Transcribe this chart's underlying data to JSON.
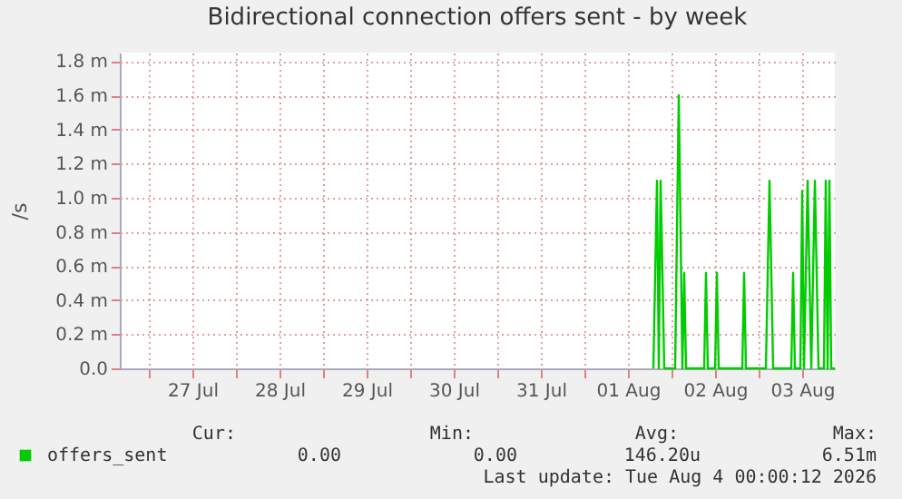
{
  "chart_data": {
    "type": "line",
    "title": "Bidirectional connection offers sent - by week",
    "ylabel": "/s",
    "x": [
      "2026-08-01T19:00",
      "2026-08-01T20:00",
      "2026-08-01T20:30",
      "2026-08-01T21:00",
      "2026-08-01T22:00",
      "2026-08-02T01:00",
      "2026-08-02T02:00",
      "2026-08-02T03:00",
      "2026-08-02T03:30",
      "2026-08-02T04:00",
      "2026-08-02T09:00",
      "2026-08-02T09:30",
      "2026-08-02T10:00",
      "2026-08-02T12:00",
      "2026-08-02T12:30",
      "2026-08-02T13:00",
      "2026-08-02T19:30",
      "2026-08-02T20:00",
      "2026-08-02T20:30",
      "2026-08-03T02:00",
      "2026-08-03T03:00",
      "2026-08-03T04:00",
      "2026-08-03T09:00",
      "2026-08-03T09:30",
      "2026-08-03T10:00",
      "2026-08-03T11:30",
      "2026-08-03T12:00",
      "2026-08-03T12:30",
      "2026-08-03T13:30",
      "2026-08-03T14:30",
      "2026-08-03T15:30",
      "2026-08-03T16:30",
      "2026-08-03T18:00",
      "2026-08-03T18:30",
      "2026-08-03T19:00",
      "2026-08-03T19:30",
      "2026-08-03T20:00",
      "2026-08-03T21:00"
    ],
    "series": [
      {
        "name": "offers_sent",
        "color": "#00cc00",
        "values": [
          0,
          1.1,
          0,
          1.1,
          0,
          0,
          1.6,
          0,
          0.56,
          0,
          0,
          0.56,
          0,
          0,
          0.56,
          0,
          0,
          0.56,
          0,
          0,
          1.1,
          0,
          0,
          0.56,
          0,
          0,
          1.04,
          0,
          1.1,
          0,
          1.1,
          0,
          0,
          1.1,
          0,
          1.1,
          0,
          0
        ]
      }
    ],
    "xlim": [
      "2026-07-26T16:00",
      "2026-08-03T21:00"
    ],
    "xticks": [
      {
        "value": "2026-07-27T00:00",
        "label": null
      },
      {
        "value": "2026-07-27T12:00",
        "label": "27 Jul"
      },
      {
        "value": "2026-07-28T00:00",
        "label": null
      },
      {
        "value": "2026-07-28T12:00",
        "label": "28 Jul"
      },
      {
        "value": "2026-07-29T00:00",
        "label": null
      },
      {
        "value": "2026-07-29T12:00",
        "label": "29 Jul"
      },
      {
        "value": "2026-07-30T00:00",
        "label": null
      },
      {
        "value": "2026-07-30T12:00",
        "label": "30 Jul"
      },
      {
        "value": "2026-07-31T00:00",
        "label": null
      },
      {
        "value": "2026-07-31T12:00",
        "label": "31 Jul"
      },
      {
        "value": "2026-08-01T00:00",
        "label": null
      },
      {
        "value": "2026-08-01T12:00",
        "label": "01 Aug"
      },
      {
        "value": "2026-08-02T00:00",
        "label": null
      },
      {
        "value": "2026-08-02T12:00",
        "label": "02 Aug"
      },
      {
        "value": "2026-08-03T00:00",
        "label": null
      },
      {
        "value": "2026-08-03T12:00",
        "label": "03 Aug"
      }
    ],
    "ylim": [
      0,
      1.85
    ],
    "yticks": [
      {
        "value": 0,
        "label": "0.0"
      },
      {
        "value": 0.2,
        "label": "0.2 m"
      },
      {
        "value": 0.4,
        "label": "0.4 m"
      },
      {
        "value": 0.6,
        "label": "0.6 m"
      },
      {
        "value": 0.8,
        "label": "0.8 m"
      },
      {
        "value": 1.0,
        "label": "1.0 m"
      },
      {
        "value": 1.2,
        "label": "1.2 m"
      },
      {
        "value": 1.4,
        "label": "1.4 m"
      },
      {
        "value": 1.6,
        "label": "1.6 m"
      },
      {
        "value": 1.8,
        "label": "1.8 m"
      }
    ],
    "grid": true,
    "legend": "bottom",
    "marker": "none",
    "line_style": "solid",
    "annotations": [
      "Cur:",
      "Min:",
      "Avg:",
      "Max:",
      "0.00",
      "0.00",
      "146.20u",
      "6.51m",
      "Last update: Tue Aug  4 00:00:12 2026"
    ]
  }
}
